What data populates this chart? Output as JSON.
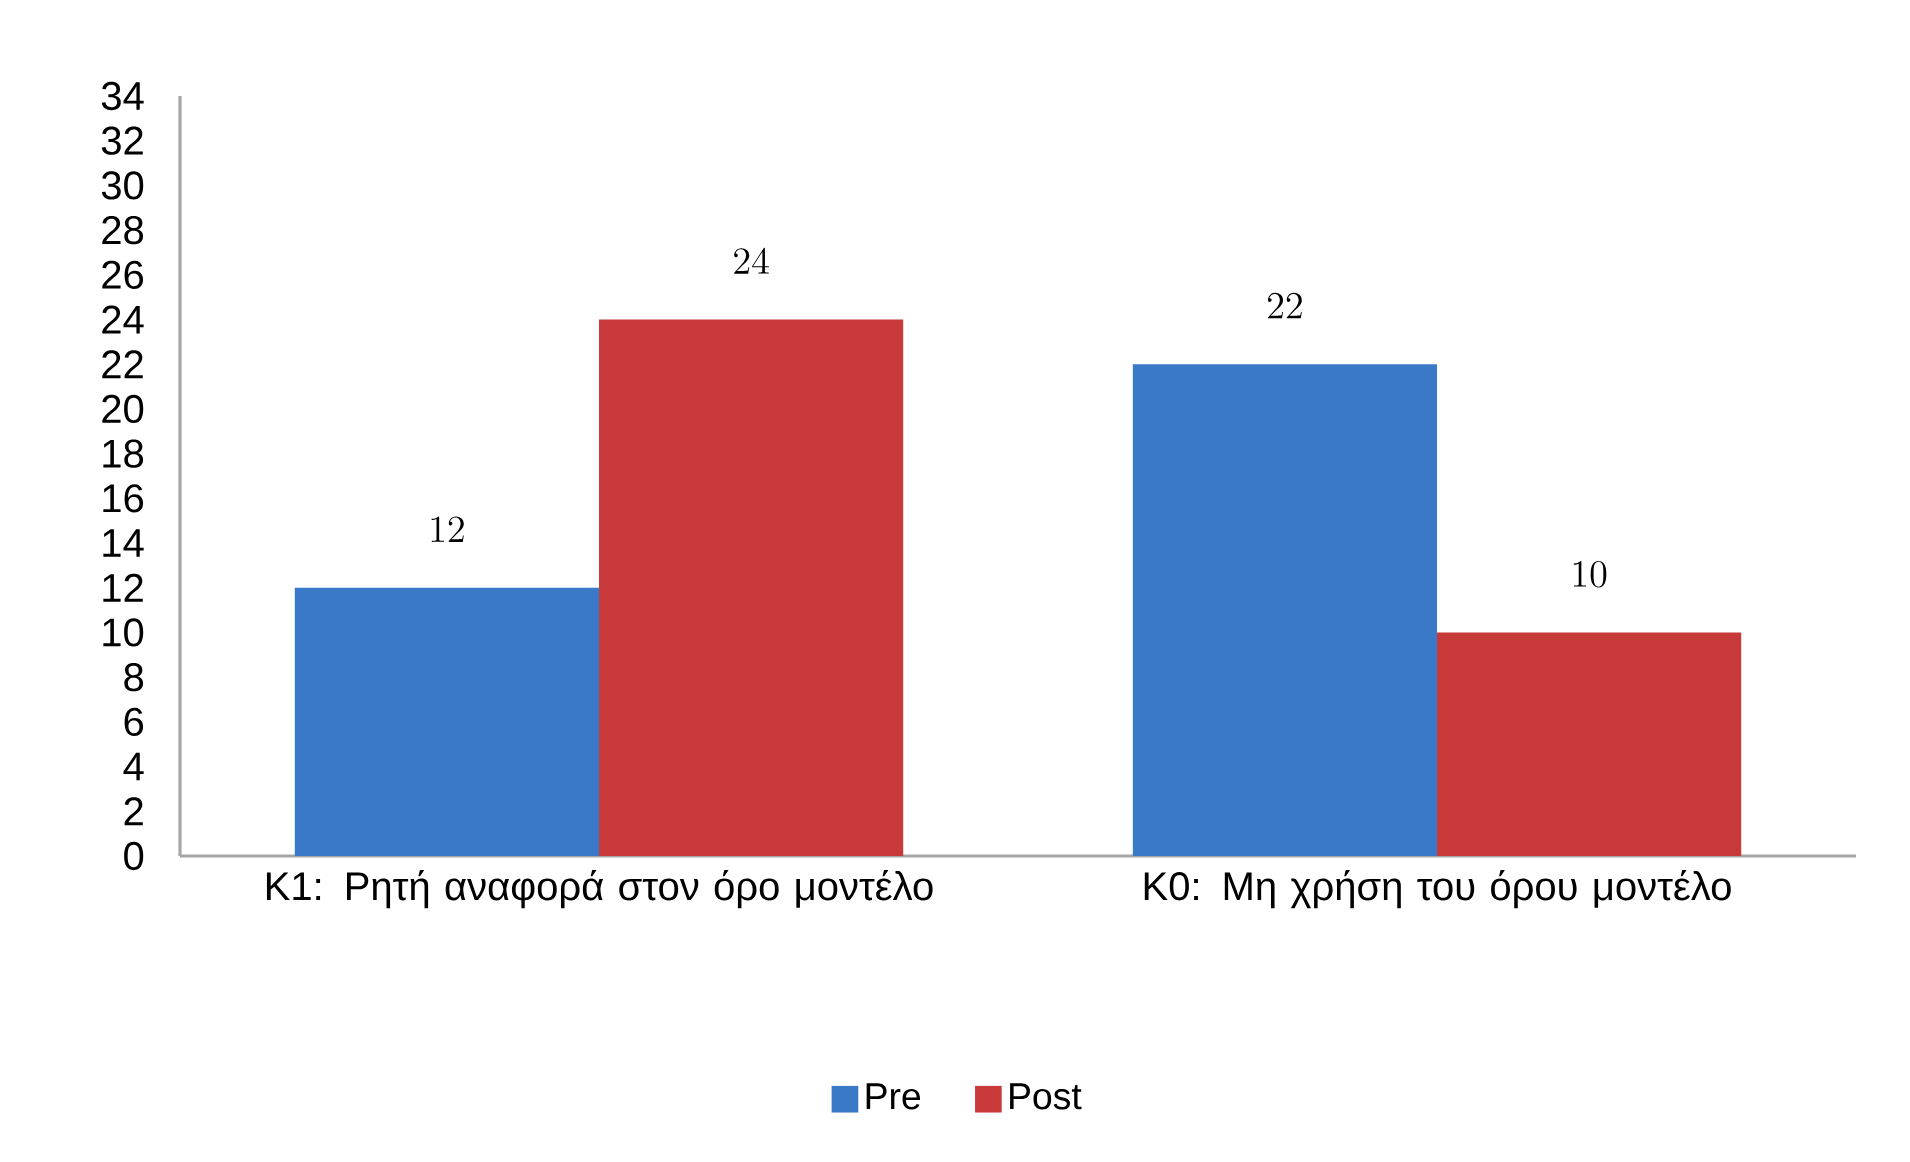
{
  "chart_data": {
    "type": "bar",
    "categories": [
      "Κ1: Ρητή αναφορά στον όρο μοντέλο",
      "Κ0: Μη χρήση του όρου μοντέλο"
    ],
    "series": [
      {
        "name": "Pre",
        "color": "#3a78c8",
        "values": [
          12,
          22
        ]
      },
      {
        "name": "Post",
        "color": "#c83a3a",
        "values": [
          24,
          10
        ]
      }
    ],
    "ylim": [
      0,
      34
    ],
    "yticks": [
      0,
      2,
      4,
      6,
      8,
      10,
      12,
      14,
      16,
      18,
      20,
      22,
      24,
      26,
      28,
      30,
      32,
      34
    ],
    "data_labels": true,
    "legend": "bottom"
  }
}
